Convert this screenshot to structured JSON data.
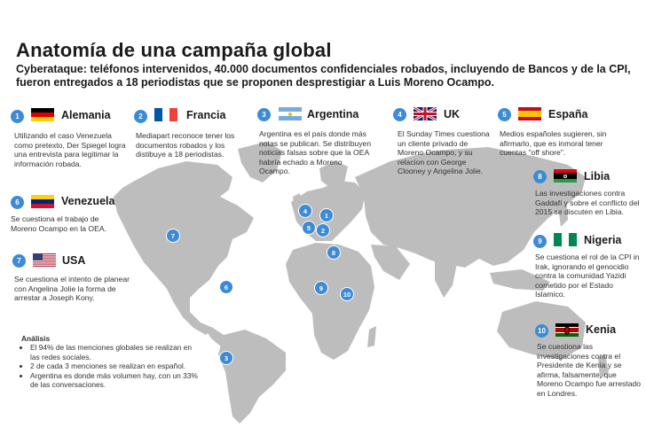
{
  "title": "Anatomía de una campaña global",
  "subtitle": "Cyberataque: teléfonos intervenidos, 40.000 documentos confidenciales robados, incluyendo de Bancos y de la CPI, fueron entregados a 18 periodistas que se proponen desprestigiar a Luis Moreno Ocampo.",
  "countries": [
    {
      "num": "1",
      "name": "Alemania",
      "flag": "germany-flag",
      "desc": "Utilizando el caso Venezuela como pretexto, Der Spiegel logra una entrevista para legitimar la información robada."
    },
    {
      "num": "2",
      "name": "Francia",
      "flag": "france-flag",
      "desc": "Mediapart reconoce tener los documentos robados y los distibuye a 18 periodistas."
    },
    {
      "num": "3",
      "name": "Argentina",
      "flag": "argentina-flag",
      "desc": "Argentina es el país donde más notas se publican. Se distribuyen noticias falsas sobre que la OEA habría echado a Moreno Ocampo."
    },
    {
      "num": "4",
      "name": "UK",
      "flag": "uk-flag",
      "desc": "El Sunday Times cuestiona un cliente privado de Moreno Ocampo, y su relacion con George  Clooney y Angelina Jolie."
    },
    {
      "num": "5",
      "name": "España",
      "flag": "spain-flag",
      "desc": "Medios españoles sugieren, sin afirmarlo, que es inmoral tener cuentas \"off shore\"."
    },
    {
      "num": "6",
      "name": "Venezuela",
      "flag": "venezuela-flag",
      "desc": "Se cuestiona el trabajo de Moreno Ocampo en la OEA."
    },
    {
      "num": "7",
      "name": "USA",
      "flag": "usa-flag",
      "desc": "Se  cuestiona el intento de planear con Angelina Jolie la forma de arrestar a Joseph Kony."
    },
    {
      "num": "8",
      "name": "Libia",
      "flag": "libya-flag",
      "desc": "Las investigaciones contra Gaddafi y sobre el conflicto del 2015 se discuten en Libia."
    },
    {
      "num": "9",
      "name": "Nigeria",
      "flag": "nigeria-flag",
      "desc": "Se cuestiona el rol de la CPI in Irak, ignorando el genocidio contra la comunidad Yazidi cometido por el Estado Islamico."
    },
    {
      "num": "10",
      "name": "Kenia",
      "flag": "kenya-flag",
      "desc": "Se cuestiona las investigaciones contra el Presidente de Kenia y se afirma, falsamente, que Moreno Ocampo fue arrestado en Londres."
    }
  ],
  "analysis": {
    "heading": "Análisis",
    "items": [
      "El 94% de las menciones globales se realizan en las redes sociales.",
      "2 de cada 3 menciones se realizan en español.",
      "Argentina es donde más volumen hay, con un 33% de las conversaciones."
    ]
  },
  "colors": {
    "accent": "#3d8bd4",
    "map": "#bdbdbd"
  }
}
